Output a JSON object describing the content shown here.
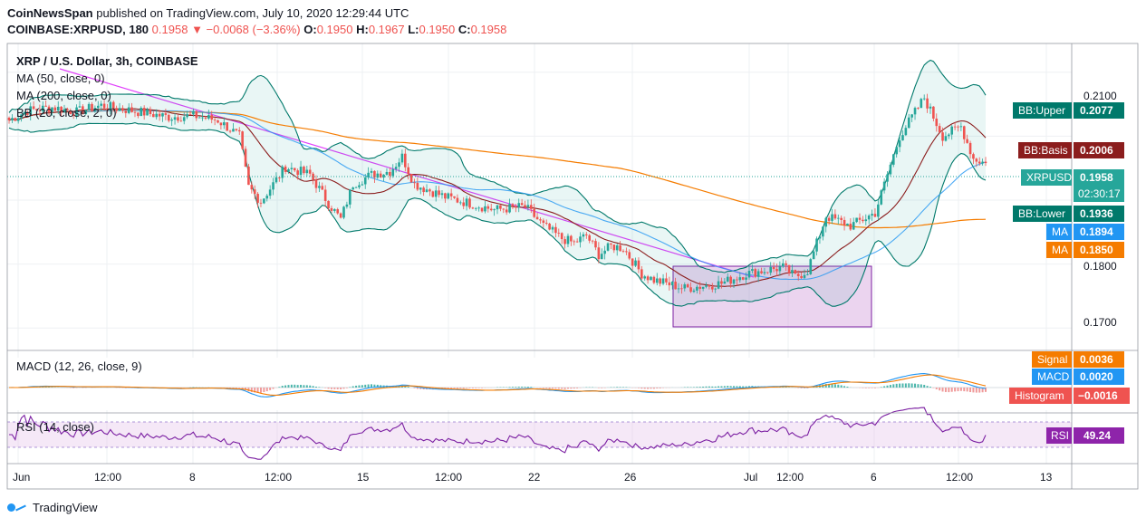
{
  "header": {
    "publisher_prefix": "CoinNewsSpan",
    "publisher_suffix": " published on TradingView.com, July 10, 2020 12:29:44 UTC",
    "symbol": "COINBASE:XRPUSD, 180",
    "last": "0.1958",
    "change": "▼ −0.0068 (−3.36%)",
    "o_label": "O:",
    "o": "0.1950",
    "h_label": "H:",
    "h": "0.1967",
    "l_label": "L:",
    "l": "0.1950",
    "c_label": "C:",
    "c": "0.1958"
  },
  "legend": {
    "title": "XRP / U.S. Dollar, 3h, COINBASE",
    "ma50": "MA (50, close, 0)",
    "ma200": "MA (200, close, 0)",
    "bb": "BB (20, close, 2, 0)",
    "macd": "MACD (12, 26, close, 9)",
    "rsi": "RSI (14, close)"
  },
  "price_axis": {
    "ticks": [
      "0.2100",
      "0.1800",
      "0.1700"
    ]
  },
  "labels": {
    "bb_upper": {
      "name": "BB:Upper",
      "value": "0.2077",
      "color": "#00796b"
    },
    "bb_basis": {
      "name": "BB:Basis",
      "value": "0.2006",
      "color": "#8b1d1d"
    },
    "xrpusd": {
      "name": "XRPUSD",
      "value": "0.1958",
      "color": "#26a69a"
    },
    "countdown": "02:30:17",
    "bb_lower": {
      "name": "BB:Lower",
      "value": "0.1936",
      "color": "#00796b"
    },
    "ma50": {
      "name": "MA",
      "value": "0.1894",
      "color": "#2196f3"
    },
    "ma200": {
      "name": "MA",
      "value": "0.1850",
      "color": "#f57c00"
    },
    "signal": {
      "name": "Signal",
      "value": "0.0036",
      "color": "#f57c00"
    },
    "macd": {
      "name": "MACD",
      "value": "0.0020",
      "color": "#2196f3"
    },
    "histogram": {
      "name": "Histogram",
      "value": "−0.0016",
      "color": "#ef5350"
    },
    "rsi": {
      "name": "RSI",
      "value": "49.24",
      "color": "#8e24aa"
    }
  },
  "x_axis": {
    "ticks": [
      "Jun",
      "12:00",
      "8",
      "12:00",
      "15",
      "12:00",
      "22",
      "26",
      "Jul",
      "12:00",
      "6",
      "12:00",
      "13"
    ]
  },
  "footer": {
    "brand": "TradingView"
  },
  "colors": {
    "up": "#26a69a",
    "down": "#ef5350",
    "ma50": "#2196f3",
    "ma200": "#f57c00",
    "basis": "#8b1d1d",
    "trend": "#e040fb",
    "rsi": "#7b1fa2"
  },
  "chart_data": {
    "type": "candlestick",
    "title": "XRP / U.S. Dollar, 3h, COINBASE",
    "timeframe": "3h",
    "x_ticks": [
      "Jun",
      "12:00",
      "8",
      "12:00",
      "15",
      "12:00",
      "22",
      "26",
      "Jul",
      "12:00",
      "6",
      "12:00",
      "13"
    ],
    "y_ticks": [
      0.21,
      0.18,
      0.17
    ],
    "ylim": [
      0.1665,
      0.2145
    ],
    "path_keypoints": [
      [
        0,
        0.2025
      ],
      [
        6,
        0.204
      ],
      [
        14,
        0.2045
      ],
      [
        22,
        0.2038
      ],
      [
        30,
        0.2048
      ],
      [
        40,
        0.204
      ],
      [
        52,
        0.203
      ],
      [
        60,
        0.2032
      ],
      [
        68,
        0.2025
      ],
      [
        75,
        0.2
      ],
      [
        78,
        0.192
      ],
      [
        82,
        0.1898
      ],
      [
        90,
        0.1952
      ],
      [
        98,
        0.194
      ],
      [
        104,
        0.1895
      ],
      [
        108,
        0.187
      ],
      [
        112,
        0.1925
      ],
      [
        118,
        0.194
      ],
      [
        124,
        0.1945
      ],
      [
        128,
        0.1968
      ],
      [
        132,
        0.1925
      ],
      [
        142,
        0.1905
      ],
      [
        158,
        0.1885
      ],
      [
        168,
        0.189
      ],
      [
        174,
        0.186
      ],
      [
        180,
        0.184
      ],
      [
        184,
        0.1833
      ],
      [
        188,
        0.1845
      ],
      [
        192,
        0.1815
      ],
      [
        196,
        0.1828
      ],
      [
        200,
        0.1825
      ],
      [
        206,
        0.1785
      ],
      [
        210,
        0.1775
      ],
      [
        220,
        0.1762
      ],
      [
        232,
        0.177
      ],
      [
        240,
        0.1785
      ],
      [
        246,
        0.179
      ],
      [
        252,
        0.1795
      ],
      [
        256,
        0.178
      ],
      [
        260,
        0.179
      ],
      [
        266,
        0.1875
      ],
      [
        274,
        0.186
      ],
      [
        282,
        0.188
      ],
      [
        290,
        0.2
      ],
      [
        298,
        0.206
      ],
      [
        304,
        0.2
      ],
      [
        310,
        0.2015
      ],
      [
        314,
        0.1965
      ],
      [
        318,
        0.1958
      ]
    ],
    "indicators": {
      "bb_upper": 0.2077,
      "bb_basis": 0.2006,
      "bb_lower": 0.1936,
      "ma50": 0.1894,
      "ma200": 0.185,
      "macd_signal": 0.0036,
      "macd": 0.002,
      "histogram": -0.0016,
      "rsi": 49.24,
      "last": 0.1958
    },
    "consolidation_range": [
      0.1745,
      0.1802
    ],
    "grid": true
  }
}
